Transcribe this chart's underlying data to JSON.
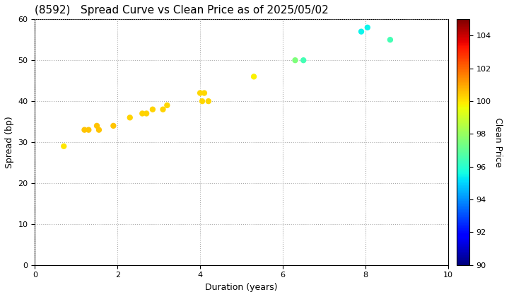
{
  "title": "(8592)   Spread Curve vs Clean Price as of 2025/05/02",
  "xlabel": "Duration (years)",
  "ylabel": "Spread (bp)",
  "colorbar_label": "Clean Price",
  "xlim": [
    0,
    10
  ],
  "ylim": [
    0,
    60
  ],
  "yticks": [
    0,
    10,
    20,
    30,
    40,
    50,
    60
  ],
  "xticks": [
    0,
    2,
    4,
    6,
    8,
    10
  ],
  "colorbar_min": 90,
  "colorbar_max": 105,
  "colorbar_ticks": [
    90,
    92,
    94,
    96,
    98,
    100,
    102,
    104
  ],
  "points": [
    {
      "duration": 0.7,
      "spread": 29,
      "price": 100.0
    },
    {
      "duration": 1.2,
      "spread": 33,
      "price": 100.5
    },
    {
      "duration": 1.3,
      "spread": 33,
      "price": 100.5
    },
    {
      "duration": 1.5,
      "spread": 34,
      "price": 100.5
    },
    {
      "duration": 1.55,
      "spread": 33,
      "price": 100.5
    },
    {
      "duration": 1.9,
      "spread": 34,
      "price": 100.5
    },
    {
      "duration": 2.3,
      "spread": 36,
      "price": 100.3
    },
    {
      "duration": 2.6,
      "spread": 37,
      "price": 100.3
    },
    {
      "duration": 2.7,
      "spread": 37,
      "price": 100.3
    },
    {
      "duration": 2.85,
      "spread": 38,
      "price": 100.3
    },
    {
      "duration": 3.1,
      "spread": 38,
      "price": 100.3
    },
    {
      "duration": 3.2,
      "spread": 39,
      "price": 100.2
    },
    {
      "duration": 4.0,
      "spread": 42,
      "price": 100.2
    },
    {
      "duration": 4.05,
      "spread": 40,
      "price": 100.2
    },
    {
      "duration": 4.1,
      "spread": 42,
      "price": 100.2
    },
    {
      "duration": 4.2,
      "spread": 40,
      "price": 100.2
    },
    {
      "duration": 5.3,
      "spread": 46,
      "price": 99.8
    },
    {
      "duration": 6.3,
      "spread": 50,
      "price": 97.5
    },
    {
      "duration": 6.5,
      "spread": 50,
      "price": 96.5
    },
    {
      "duration": 7.9,
      "spread": 57,
      "price": 95.5
    },
    {
      "duration": 8.05,
      "spread": 58,
      "price": 95.5
    },
    {
      "duration": 8.6,
      "spread": 55,
      "price": 96.5
    }
  ],
  "marker_size": 25,
  "background_color": "#ffffff",
  "grid_color": "#aaaaaa",
  "title_fontsize": 11,
  "axis_fontsize": 9,
  "tick_fontsize": 8,
  "cbar_fontsize": 9
}
